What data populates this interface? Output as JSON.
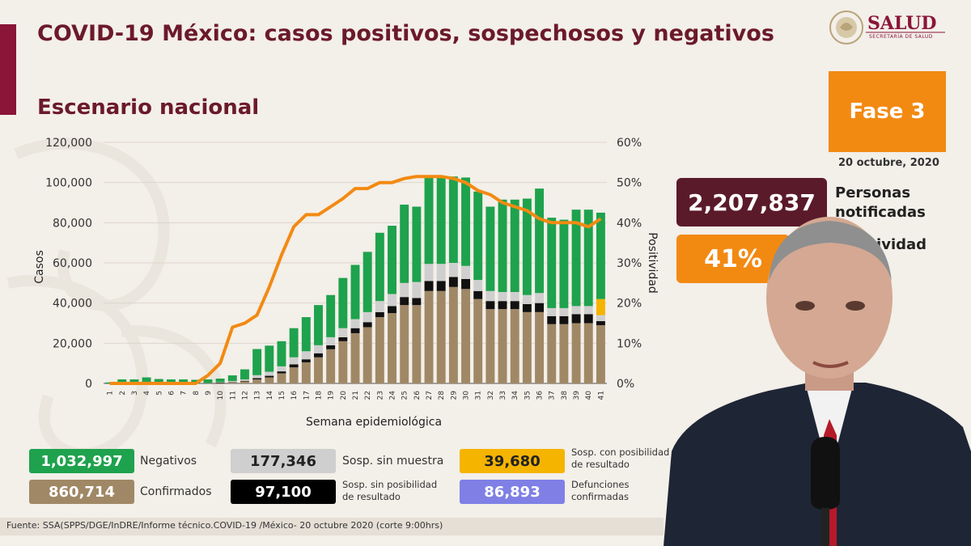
{
  "header": {
    "title": "COVID-19 México: casos positivos, sospechosos y negativos",
    "subtitle": "Escenario nacional",
    "logo_text": "SALUD",
    "logo_sub": "SECRETARÍA DE SALUD"
  },
  "phase": {
    "label": "Fase 3",
    "date": "20 octubre, 2020"
  },
  "kpis": [
    {
      "value": "2,207,837",
      "label_line1": "Personas",
      "label_line2": "notificadas"
    },
    {
      "value": "41%",
      "label_line1": "Positividad"
    }
  ],
  "chart_data": {
    "type": "bar",
    "xlabel": "Semana epidemiológica",
    "ylabel": "Casos",
    "y2label": "Positividad",
    "ylim": [
      0,
      120000
    ],
    "y_ticks": [
      "0",
      "20,000",
      "40,000",
      "60,000",
      "80,000",
      "100,000",
      "120,000"
    ],
    "y2lim": [
      0,
      60
    ],
    "y2_ticks": [
      "0%",
      "10%",
      "20%",
      "30%",
      "40%",
      "50%",
      "60%"
    ],
    "categories": [
      "1",
      "2",
      "3",
      "4",
      "5",
      "6",
      "7",
      "8",
      "9",
      "10",
      "11",
      "12",
      "13",
      "14",
      "15",
      "16",
      "17",
      "18",
      "19",
      "20",
      "21",
      "22",
      "23",
      "24",
      "25",
      "26",
      "27",
      "28",
      "29",
      "30",
      "31",
      "32",
      "33",
      "34",
      "35",
      "36",
      "37",
      "38",
      "39",
      "40",
      "41"
    ],
    "colors": {
      "confirmados": "#a08866",
      "sosp_sin_posibilidad": "#111111",
      "sosp_sin_muestra": "#cfcfcf",
      "sosp_con_posibilidad": "#f5b400",
      "negativos": "#1ea24d",
      "positividad": "#f28a12"
    },
    "series": [
      {
        "name": "Confirmados",
        "values": [
          0,
          0,
          0,
          0,
          0,
          0,
          0,
          0,
          200,
          300,
          500,
          1000,
          2000,
          3000,
          5000,
          8000,
          10500,
          13000,
          17000,
          21000,
          25000,
          28000,
          33000,
          35000,
          39000,
          39000,
          46000,
          46000,
          48000,
          47000,
          42000,
          37000,
          37000,
          37000,
          35500,
          35500,
          29500,
          29500,
          30000,
          30000,
          29000
        ]
      },
      {
        "name": "Sosp. sin posibilidad de resultado",
        "values": [
          0,
          0,
          0,
          0,
          0,
          0,
          0,
          0,
          0,
          100,
          200,
          300,
          600,
          800,
          1000,
          1500,
          1500,
          2000,
          2000,
          2000,
          2500,
          2500,
          2500,
          3500,
          4000,
          3500,
          5000,
          5000,
          5000,
          5000,
          4000,
          4000,
          4000,
          4000,
          4000,
          4500,
          4000,
          4000,
          4500,
          4500,
          2000
        ]
      },
      {
        "name": "Sosp. sin muestra",
        "values": [
          0,
          0,
          0,
          0,
          0,
          0,
          0,
          0,
          0,
          200,
          500,
          700,
          1500,
          2000,
          2500,
          3500,
          4000,
          4000,
          4000,
          4500,
          4500,
          5000,
          5500,
          6000,
          7000,
          8000,
          8500,
          8500,
          7000,
          6500,
          5500,
          5000,
          4500,
          4500,
          4500,
          5000,
          4000,
          4000,
          4000,
          4000,
          3000
        ]
      },
      {
        "name": "Sosp. con posibilidad de resultado",
        "values": [
          0,
          0,
          0,
          0,
          0,
          0,
          0,
          0,
          0,
          0,
          0,
          0,
          0,
          0,
          0,
          0,
          0,
          0,
          0,
          0,
          0,
          0,
          0,
          0,
          0,
          0,
          0,
          0,
          0,
          0,
          0,
          0,
          0,
          0,
          0,
          0,
          0,
          0,
          0,
          0,
          8000
        ]
      },
      {
        "name": "Negativos",
        "values": [
          500,
          2000,
          2000,
          3000,
          2200,
          2000,
          2000,
          1800,
          1800,
          1800,
          2800,
          5000,
          13000,
          13000,
          12500,
          14500,
          17000,
          20000,
          21000,
          25000,
          27000,
          30000,
          34000,
          34000,
          39000,
          37500,
          43000,
          43000,
          43000,
          44000,
          44000,
          42000,
          46000,
          46000,
          48000,
          52000,
          45000,
          44000,
          48000,
          48000,
          43000
        ]
      },
      {
        "name": "Positividad (%)",
        "values": [
          0,
          0,
          0,
          0,
          0,
          0,
          0,
          0,
          2,
          5,
          14,
          15,
          17,
          24,
          32,
          39,
          42,
          42,
          44,
          46,
          48.5,
          48.5,
          50,
          50,
          51,
          51.5,
          51.5,
          51.5,
          51,
          50,
          48,
          47,
          45,
          44,
          43,
          41,
          40,
          40,
          40,
          39,
          41
        ]
      }
    ]
  },
  "legend": [
    {
      "value": "1,032,997",
      "label": "Negativos",
      "color": "#1ea24d",
      "text_color": "#ffffff"
    },
    {
      "value": "177,346",
      "label": "Sosp. sin muestra",
      "color": "#cfcfcf",
      "text_color": "#222222"
    },
    {
      "value": "39,680",
      "label_line1": "Sosp. con posibilidad",
      "label_line2": "de resultado",
      "color": "#f5b400",
      "text_color": "#222222"
    },
    {
      "value": "860,714",
      "label": "Confirmados",
      "color": "#a08866",
      "text_color": "#ffffff"
    },
    {
      "value": "97,100",
      "label_line1": "Sosp. sin posibilidad",
      "label_line2": "de resultado",
      "color": "#000000",
      "text_color": "#ffffff"
    },
    {
      "value": "86,893",
      "label_line1": "Defunciones",
      "label_line2": "confirmadas",
      "color": "#7f7fe6",
      "text_color": "#ffffff"
    }
  ],
  "source": "Fuente: SSA(SPPS/DGE/InDRE/Informe técnico.COVID-19 /México- 20 octubre 2020 (corte 9:00hrs)"
}
